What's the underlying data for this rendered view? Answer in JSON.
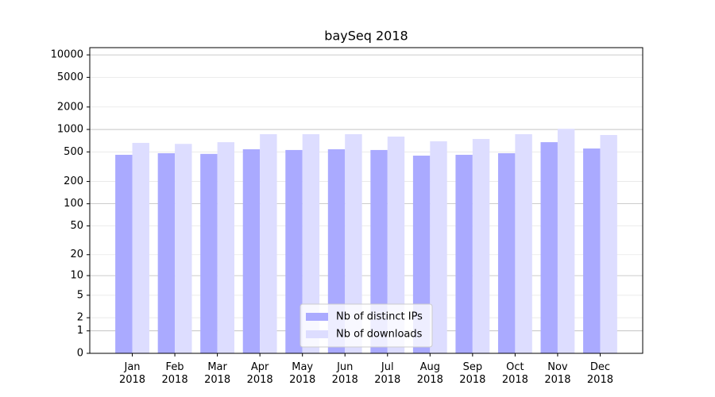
{
  "chart_data": {
    "type": "bar",
    "title": "baySeq 2018",
    "categories": [
      "Jan\n2018",
      "Feb\n2018",
      "Mar\n2018",
      "Apr\n2018",
      "May\n2018",
      "Jun\n2018",
      "Jul\n2018",
      "Aug\n2018",
      "Sep\n2018",
      "Oct\n2018",
      "Nov\n2018",
      "Dec\n2018"
    ],
    "series": [
      {
        "name": "Nb of distinct IPs",
        "color": "#aaaaff",
        "values": [
          457,
          480,
          470,
          542,
          530,
          542,
          530,
          445,
          457,
          480,
          675,
          555
        ]
      },
      {
        "name": "Nb of downloads",
        "color": "#ddddff",
        "values": [
          660,
          640,
          675,
          864,
          864,
          864,
          802,
          694,
          745,
          864,
          1020,
          842
        ]
      }
    ],
    "yscale": "log1p",
    "ylim": [
      0,
      12500
    ],
    "yticks": [
      0,
      1,
      2,
      5,
      10,
      20,
      50,
      100,
      200,
      500,
      1000,
      2000,
      5000,
      10000
    ],
    "grid": true,
    "legend": "lower center"
  }
}
